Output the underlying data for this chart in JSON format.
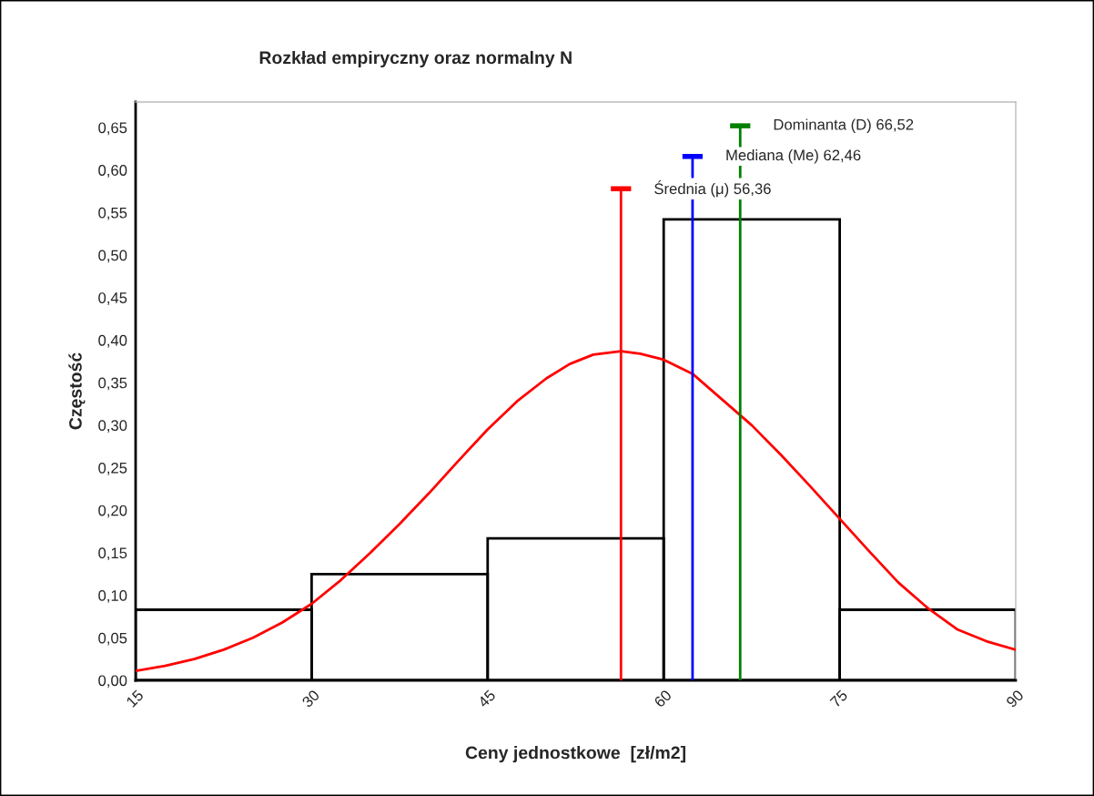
{
  "chart_data": {
    "type": "histogram",
    "title": "Rozkład empiryczny oraz normalny N",
    "xlabel": "Ceny jednostkowe  [zł/m2]",
    "ylabel": "Częstość",
    "bins": [
      15,
      30,
      45,
      60,
      75,
      90
    ],
    "values": [
      0.083,
      0.125,
      0.167,
      0.542,
      0.083
    ],
    "color": "#000000",
    "series": [
      {
        "type": "line",
        "color": "#ff0000",
        "x": [
          15,
          17.5,
          20,
          22.5,
          25,
          27.5,
          30,
          32.5,
          35,
          37.5,
          40,
          42.5,
          45,
          47.5,
          50,
          52,
          54,
          56.36,
          58,
          60,
          62.5,
          65,
          67.5,
          70,
          72.5,
          75,
          77.5,
          80,
          82.5,
          85,
          87.5,
          90
        ],
        "values": [
          0.011,
          0.017,
          0.025,
          0.036,
          0.05,
          0.068,
          0.09,
          0.118,
          0.15,
          0.184,
          0.22,
          0.258,
          0.295,
          0.328,
          0.355,
          0.372,
          0.383,
          0.387,
          0.384,
          0.377,
          0.36,
          0.33,
          0.3,
          0.265,
          0.228,
          0.19,
          0.152,
          0.115,
          0.085,
          0.06,
          0.046,
          0.036
        ]
      },
      {
        "type": "line",
        "name": "Średnia (μ) 56,36",
        "color": "#ff0000",
        "x": [
          56.36,
          56.36
        ],
        "values": [
          0,
          0.578
        ]
      },
      {
        "type": "line",
        "name": "Mediana (Me) 62,46",
        "color": "#0000ff",
        "x": [
          62.46,
          62.46
        ],
        "values": [
          0,
          0.616
        ]
      },
      {
        "type": "line",
        "name": "Dominanta (D) 66,52",
        "color": "#008000",
        "x": [
          66.52,
          66.52
        ],
        "values": [
          0,
          0.652
        ]
      }
    ],
    "xlim": [
      15,
      90
    ],
    "xticks": [
      15,
      30,
      45,
      60,
      75,
      90
    ],
    "ylim": [
      0,
      0.68
    ],
    "yticks": [
      {
        "value": 0,
        "label": "0,00"
      },
      {
        "value": 0.05,
        "label": "0,05"
      },
      {
        "value": 0.1,
        "label": "0,10"
      },
      {
        "value": 0.15,
        "label": "0,15"
      },
      {
        "value": 0.2,
        "label": "0,20"
      },
      {
        "value": 0.25,
        "label": "0,25"
      },
      {
        "value": 0.3,
        "label": "0,30"
      },
      {
        "value": 0.35,
        "label": "0,35"
      },
      {
        "value": 0.4,
        "label": "0,40"
      },
      {
        "value": 0.45,
        "label": "0,45"
      },
      {
        "value": 0.5,
        "label": "0,50"
      },
      {
        "value": 0.55,
        "label": "0,55"
      },
      {
        "value": 0.6,
        "label": "0,60"
      },
      {
        "value": 0.65,
        "label": "0,65"
      }
    ],
    "grid": false,
    "legend": "top right"
  }
}
